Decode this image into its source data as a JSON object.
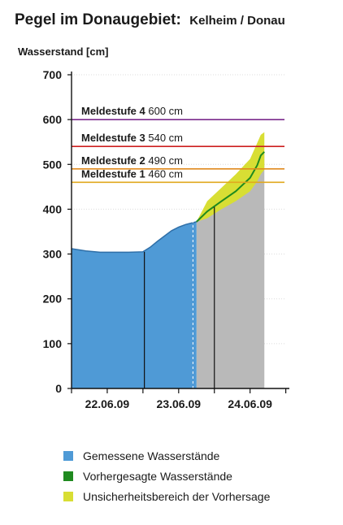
{
  "title": "Pegel im Donaugebiet:",
  "station": "Kelheim / Donau",
  "colors": {
    "measured": "#4f9ad6",
    "forecast_line": "#1f8a1f",
    "uncertainty": "#d8de34",
    "forecast_area": "#b9b9b9",
    "level1": "#e0a81e",
    "level2": "#e08a1e",
    "level3": "#cc1f1f",
    "level4": "#7a2a8c"
  },
  "legend": [
    {
      "label": "Gemessene Wasserstände",
      "color_key": "measured"
    },
    {
      "label": "Vorhergesagte Wasserstände",
      "color_key": "forecast_line"
    },
    {
      "label": "Unsicherheitsbereich der Vorhersage",
      "color_key": "uncertainty"
    }
  ],
  "chart_data": {
    "type": "area",
    "ylabel": "Wasserstand [cm]",
    "ylim": [
      0,
      700
    ],
    "xlim": [
      0,
      3.05
    ],
    "yticks": [
      0,
      100,
      200,
      300,
      400,
      500,
      600,
      700
    ],
    "xticks": [
      {
        "x": 0,
        "label": ""
      },
      {
        "x": 0.5,
        "label": "22.06.09"
      },
      {
        "x": 1,
        "label": ""
      },
      {
        "x": 1.5,
        "label": "23.06.09"
      },
      {
        "x": 2,
        "label": ""
      },
      {
        "x": 2.5,
        "label": "24.06.09"
      },
      {
        "x": 3,
        "label": ""
      }
    ],
    "day_dividers": [
      1.02,
      2.0
    ],
    "forecast_start": 1.7,
    "grid": true,
    "measured": {
      "name": "Gemessene Wasserstände",
      "x": [
        0,
        0.2,
        0.4,
        0.6,
        0.8,
        1.0,
        1.1,
        1.2,
        1.3,
        1.4,
        1.5,
        1.6,
        1.7,
        1.75
      ],
      "y": [
        312,
        307,
        304,
        304,
        304,
        305,
        315,
        328,
        340,
        352,
        360,
        366,
        370,
        372
      ]
    },
    "forecast": {
      "name": "Vorhergesagte Wasserstände",
      "x": [
        1.75,
        1.9,
        2.1,
        2.3,
        2.5,
        2.6,
        2.65,
        2.7
      ],
      "y": [
        372,
        395,
        418,
        440,
        470,
        498,
        520,
        528
      ],
      "upper": [
        372,
        418,
        448,
        478,
        512,
        548,
        566,
        572
      ],
      "lower": [
        372,
        380,
        400,
        418,
        440,
        462,
        478,
        488
      ]
    },
    "alert_levels": [
      {
        "label": "Meldestufe 1",
        "value": 460,
        "text": "460 cm",
        "color_key": "level1"
      },
      {
        "label": "Meldestufe 2",
        "value": 490,
        "text": "490 cm",
        "color_key": "level2"
      },
      {
        "label": "Meldestufe 3",
        "value": 540,
        "text": "540 cm",
        "color_key": "level3"
      },
      {
        "label": "Meldestufe 4",
        "value": 600,
        "text": "600 cm",
        "color_key": "level4"
      }
    ]
  }
}
